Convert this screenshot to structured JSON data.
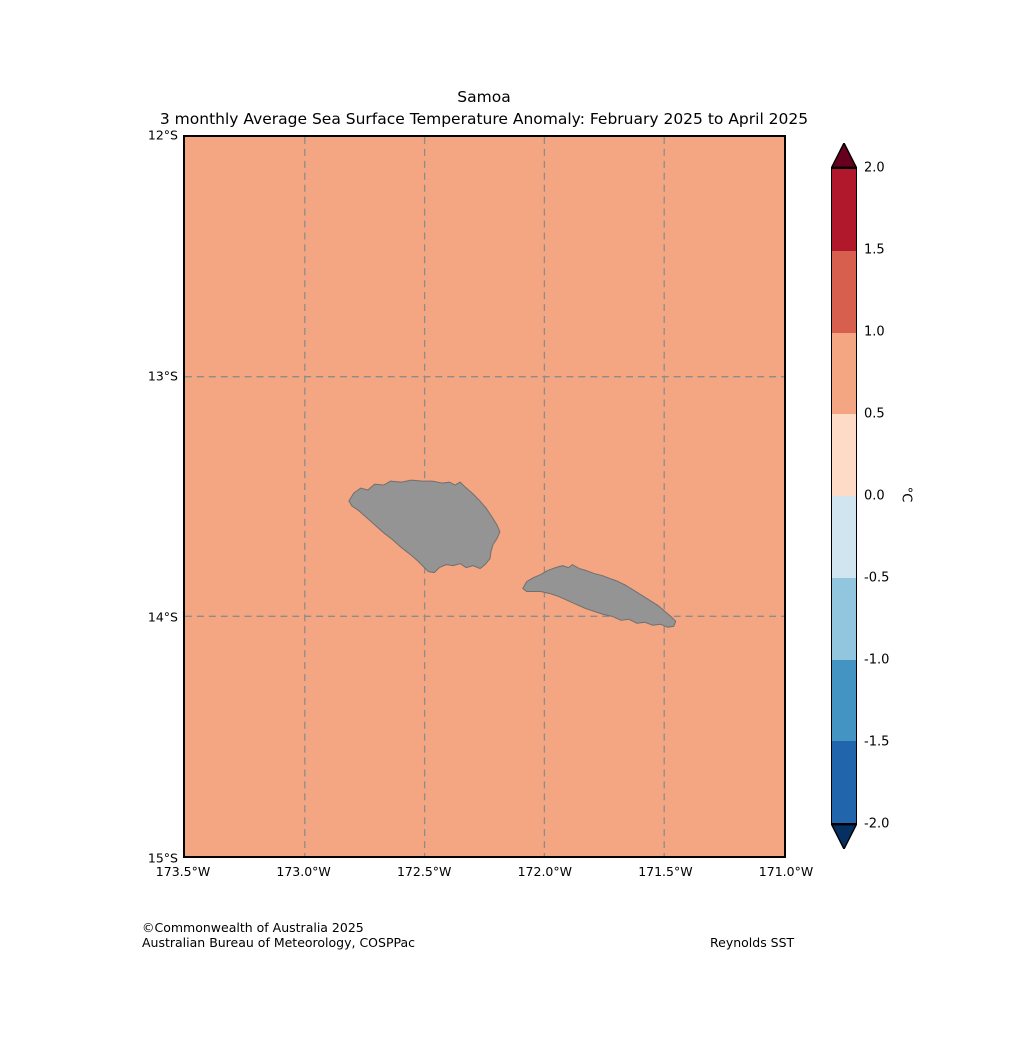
{
  "title": "Samoa",
  "subtitle": "3 monthly Average Sea Surface Temperature Anomaly: February 2025 to April 2025",
  "map": {
    "fill_color": "#f4a582",
    "island_color": "#949494",
    "grid_color": "#8c8c8c"
  },
  "axes": {
    "x_ticks": [
      {
        "label": "173.5°W",
        "pos": 0
      },
      {
        "label": "173.0°W",
        "pos": 20
      },
      {
        "label": "172.5°W",
        "pos": 40
      },
      {
        "label": "172.0°W",
        "pos": 60
      },
      {
        "label": "171.5°W",
        "pos": 80
      },
      {
        "label": "171.0°W",
        "pos": 100
      }
    ],
    "y_ticks": [
      {
        "label": "12°S",
        "pos": 0
      },
      {
        "label": "13°S",
        "pos": 33.33
      },
      {
        "label": "14°S",
        "pos": 66.67
      },
      {
        "label": "15°S",
        "pos": 100
      }
    ]
  },
  "colorbar": {
    "unit": "°C",
    "ticks": [
      "2.0",
      "1.5",
      "1.0",
      "0.5",
      "0.0",
      "-0.5",
      "-1.0",
      "-1.5",
      "-2.0"
    ],
    "segments": [
      "#b2182b",
      "#d6604d",
      "#f4a582",
      "#fddbc7",
      "#d1e5f0",
      "#92c5de",
      "#4393c3",
      "#2166ac"
    ],
    "top_arrow": "#67001f",
    "bottom_arrow": "#053061"
  },
  "footer": {
    "copyright": "©Commonwealth of Australia 2025",
    "org": "Australian Bureau of Meteorology, COSPPac",
    "source": "Reynolds SST"
  },
  "chart_data": {
    "type": "heatmap",
    "title": "Samoa",
    "subtitle": "3 monthly Average Sea Surface Temperature Anomaly: February 2025 to April 2025",
    "xlabel": "",
    "ylabel": "",
    "x_tick_labels": [
      "173.5°W",
      "173.0°W",
      "172.5°W",
      "172.0°W",
      "171.5°W",
      "171.0°W"
    ],
    "y_tick_labels": [
      "12°S",
      "13°S",
      "14°S",
      "15°S"
    ],
    "lon_range_deg_west": [
      173.5,
      171.0
    ],
    "lat_range_deg_south": [
      12,
      15
    ],
    "grid": true,
    "grid_style": "dashed",
    "colorbar": {
      "unit": "°C",
      "range": [
        -2.0,
        2.0
      ],
      "tick_values": [
        2.0,
        1.5,
        1.0,
        0.5,
        0.0,
        -0.5,
        -1.0,
        -1.5,
        -2.0
      ],
      "bin_colors_top_to_bottom": [
        "#b2182b",
        "#d6604d",
        "#f4a582",
        "#fddbc7",
        "#d1e5f0",
        "#92c5de",
        "#4393c3",
        "#2166ac"
      ],
      "extend": "both",
      "position": "right"
    },
    "values": {
      "description": "Entire ocean area rendered in a single anomaly bin",
      "uniform_anomaly_bin_degC": [
        0.5,
        1.0
      ]
    },
    "overlays": [
      "two gray island landmasses (Samoa) centered near 172.4°W 13.6°S and 171.8°W 13.9°S"
    ],
    "source_label": "Reynolds SST"
  }
}
